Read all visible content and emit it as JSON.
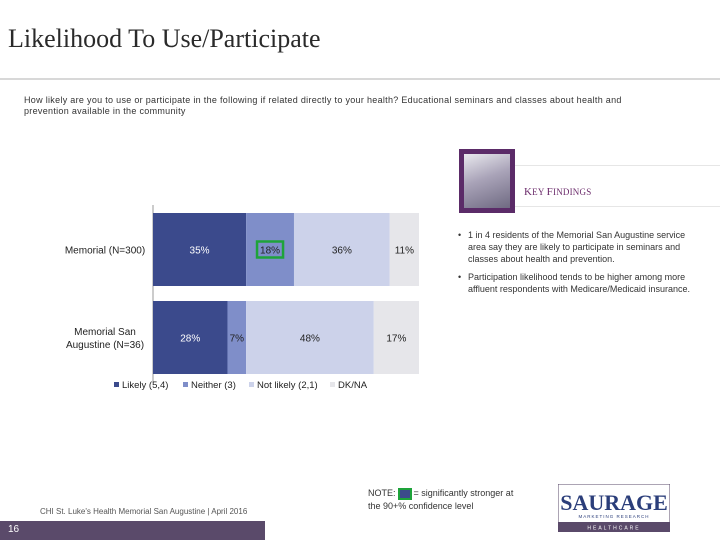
{
  "title": "Likelihood To Use/Participate",
  "question": "How likely are you to use or participate in the following if related directly to your health? Educational seminars and classes about health and prevention available in the community",
  "chart_data": {
    "type": "bar",
    "orientation": "horizontal",
    "stacked": true,
    "categories": [
      "Memorial (N=300)",
      "Memorial San Augustine (N=36)"
    ],
    "series": [
      {
        "name": "Likely (5,4)",
        "values": [
          35,
          28
        ],
        "color": "#3b4a8c",
        "labels": [
          "35%",
          "28%"
        ]
      },
      {
        "name": "Neither (3)",
        "values": [
          18,
          7
        ],
        "color": "#7f8ec9",
        "labels": [
          "18%",
          "7%"
        ]
      },
      {
        "name": "Not likely (2,1)",
        "values": [
          36,
          48
        ],
        "color": "#ccd2ea",
        "labels": [
          "36%",
          "48%"
        ]
      },
      {
        "name": "DK/NA",
        "values": [
          11,
          17
        ],
        "color": "#e6e6ea",
        "labels": [
          "11%",
          "17%"
        ]
      }
    ],
    "highlighted": [
      {
        "row": 0,
        "series": 1
      }
    ],
    "xlim": [
      0,
      100
    ],
    "legend_position": "bottom"
  },
  "key_findings": {
    "title": "Key Findings",
    "items": [
      "1 in 4 residents of the Memorial San Augustine service area say they are likely to participate in seminars and classes about health and prevention.",
      "Participation likelihood tends to be higher among more affluent respondents with Medicare/Medicaid insurance."
    ]
  },
  "note": {
    "prefix": "NOTE:",
    "suffix": "= significantly stronger at the 90+% confidence level"
  },
  "footer": "CHI St. Luke's Health Memorial San Augustine | April 2016",
  "page_number": "16",
  "logo": {
    "name": "SAURAGE",
    "tagline": "MARKETING RESEARCH",
    "sub": "HEALTHCARE"
  }
}
